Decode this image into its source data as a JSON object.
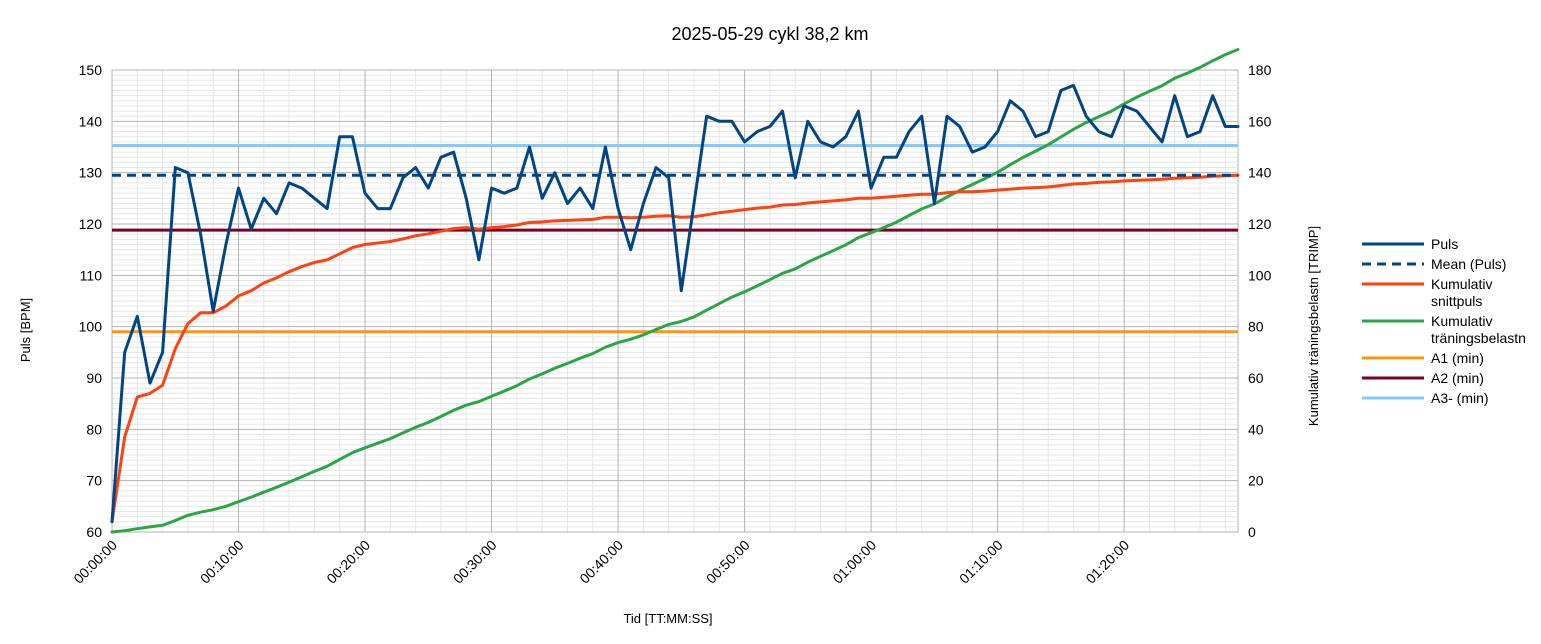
{
  "chart_data": {
    "type": "line",
    "title": "2025-05-29 cykl 38,2 km",
    "xlabel": "Tid [TT:MM:SS]",
    "ylabel": "Puls [BPM]",
    "y2label": "Kumulativ träningsbelastn [TRIMP]",
    "xlim_minutes": [
      0,
      89
    ],
    "ylim": [
      60,
      150
    ],
    "y2lim": [
      0,
      180
    ],
    "x_ticks": [
      "00:00:00",
      "00:10:00",
      "00:20:00",
      "00:30:00",
      "00:40:00",
      "00:50:00",
      "01:00:00",
      "01:10:00",
      "01:20:00"
    ],
    "y_ticks": [
      60,
      70,
      80,
      90,
      100,
      110,
      120,
      130,
      140,
      150
    ],
    "y2_ticks": [
      0,
      20,
      40,
      60,
      80,
      100,
      120,
      140,
      160,
      180
    ],
    "grid": true,
    "legend_position": "right",
    "x_minutes": [
      0,
      1,
      2,
      3,
      4,
      5,
      6,
      7,
      8,
      9,
      10,
      11,
      12,
      13,
      14,
      15,
      16,
      17,
      18,
      19,
      20,
      21,
      22,
      23,
      24,
      25,
      26,
      27,
      28,
      29,
      30,
      31,
      32,
      33,
      34,
      35,
      36,
      37,
      38,
      39,
      40,
      41,
      42,
      43,
      44,
      45,
      46,
      47,
      48,
      49,
      50,
      51,
      52,
      53,
      54,
      55,
      56,
      57,
      58,
      59,
      60,
      61,
      62,
      63,
      64,
      65,
      66,
      67,
      68,
      69,
      70,
      71,
      72,
      73,
      74,
      75,
      76,
      77,
      78,
      79,
      80,
      81,
      82,
      83,
      84,
      85,
      86,
      87,
      88,
      89
    ],
    "series": [
      {
        "name": "Puls",
        "axis": "left",
        "color": "#004586",
        "style": "solid",
        "values": [
          62,
          95,
          102,
          89,
          95,
          131,
          130,
          118,
          103,
          116,
          127,
          119,
          125,
          122,
          128,
          127,
          125,
          123,
          137,
          137,
          126,
          123,
          123,
          129,
          131,
          127,
          133,
          134,
          125,
          113,
          127,
          126,
          127,
          135,
          125,
          130,
          124,
          127,
          123,
          135,
          123,
          115,
          124,
          131,
          129,
          107,
          124,
          141,
          140,
          140,
          136,
          138,
          139,
          142,
          129,
          140,
          136,
          135,
          137,
          142,
          127,
          133,
          133,
          138,
          141,
          124,
          141,
          139,
          134,
          135,
          138,
          144,
          142,
          137,
          138,
          146,
          147,
          141,
          138,
          137,
          143,
          142,
          139,
          136,
          145,
          137,
          138,
          145,
          139,
          139
        ]
      },
      {
        "name": "Mean (Puls)",
        "axis": "left",
        "color": "#004586",
        "style": "dashed",
        "values": [
          129.5,
          129.5
        ]
      },
      {
        "name": "Kumulativ snittpuls",
        "axis": "left",
        "color": "#ff420e",
        "style": "solid",
        "values": [
          62,
          78.5,
          86.3,
          87,
          88.6,
          95.7,
          100.6,
          102.7,
          102.7,
          104,
          106,
          107,
          108.5,
          109.5,
          110.7,
          111.7,
          112.5,
          113,
          114.2,
          115.4,
          116,
          116.3,
          116.6,
          117.1,
          117.7,
          118.1,
          118.6,
          119.1,
          119.3,
          119,
          119.3,
          119.5,
          119.8,
          120.3,
          120.4,
          120.6,
          120.7,
          120.8,
          120.9,
          121.3,
          121.3,
          121.2,
          121.3,
          121.5,
          121.6,
          121.3,
          121.4,
          121.8,
          122.2,
          122.5,
          122.8,
          123.1,
          123.3,
          123.7,
          123.8,
          124.1,
          124.3,
          124.5,
          124.7,
          125,
          125,
          125.2,
          125.4,
          125.6,
          125.8,
          125.8,
          126.1,
          126.3,
          126.3,
          126.4,
          126.6,
          126.8,
          127,
          127.1,
          127.2,
          127.5,
          127.8,
          127.9,
          128.1,
          128.2,
          128.4,
          128.5,
          128.6,
          128.7,
          128.9,
          129,
          129.1,
          129.3,
          129.4,
          129.5
        ]
      },
      {
        "name": "Kumulativ träningsbelastn",
        "axis": "right",
        "color": "#28a745",
        "style": "solid",
        "values": [
          0,
          0.5,
          1.3,
          2,
          2.6,
          4.5,
          6.5,
          7.7,
          8.7,
          10,
          11.8,
          13.6,
          15.5,
          17.4,
          19.4,
          21.5,
          23.6,
          25.6,
          28.3,
          30.9,
          32.8,
          34.6,
          36.4,
          38.6,
          40.8,
          42.7,
          45,
          47.4,
          49.4,
          50.8,
          52.9,
          54.9,
          57,
          59.6,
          61.6,
          63.8,
          65.7,
          67.7,
          69.5,
          72,
          73.8,
          75.1,
          76.8,
          78.9,
          80.9,
          82,
          83.8,
          86.4,
          89,
          91.5,
          93.6,
          95.9,
          98.3,
          100.8,
          102.5,
          105.1,
          107.4,
          109.6,
          111.9,
          114.7,
          116.6,
          118.6,
          120.7,
          123.3,
          125.9,
          127.8,
          130.5,
          133.1,
          135.4,
          137.7,
          140.2,
          143.1,
          145.9,
          148.4,
          150.9,
          153.9,
          156.9,
          159.5,
          161.8,
          164,
          166.8,
          169.4,
          171.7,
          173.9,
          176.8,
          178.8,
          181,
          183.6,
          186,
          188
        ]
      },
      {
        "name": "A1 (min)",
        "axis": "left",
        "color": "#ff950e",
        "style": "solid",
        "values": [
          99,
          99
        ]
      },
      {
        "name": "A2 (min)",
        "axis": "left",
        "color": "#7e0021",
        "style": "solid",
        "values": [
          118.8,
          118.8
        ]
      },
      {
        "name": "A3- (min)",
        "axis": "left",
        "color": "#83caff",
        "style": "solid",
        "values": [
          135.3,
          135.3
        ]
      }
    ]
  },
  "legend": [
    {
      "label_lines": [
        "Puls"
      ],
      "color": "#004586",
      "style": "solid"
    },
    {
      "label_lines": [
        "Mean (Puls)"
      ],
      "color": "#004586",
      "style": "dashed"
    },
    {
      "label_lines": [
        "Kumulativ",
        "snittpuls"
      ],
      "color": "#ff420e",
      "style": "solid"
    },
    {
      "label_lines": [
        "Kumulativ",
        "träningsbelastn"
      ],
      "color": "#28a745",
      "style": "solid"
    },
    {
      "label_lines": [
        "A1 (min)"
      ],
      "color": "#ff950e",
      "style": "solid"
    },
    {
      "label_lines": [
        "A2 (min)"
      ],
      "color": "#7e0021",
      "style": "solid"
    },
    {
      "label_lines": [
        "A3- (min)"
      ],
      "color": "#83caff",
      "style": "solid"
    }
  ]
}
